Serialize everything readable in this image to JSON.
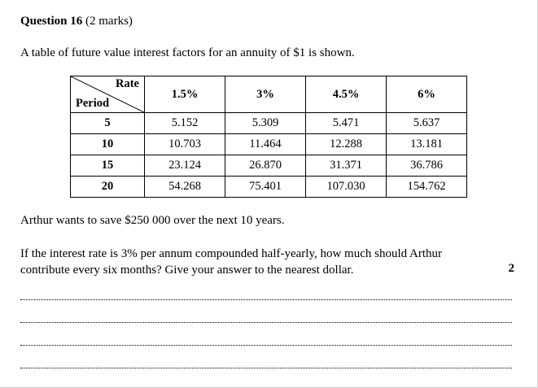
{
  "question": {
    "number_label": "Question 16",
    "marks_label": "(2 marks)",
    "intro": "A table of future value interest factors for an annuity of $1 is shown."
  },
  "table": {
    "corner_top": "Rate",
    "corner_bottom": "Period",
    "rates": [
      "1.5%",
      "3%",
      "4.5%",
      "6%"
    ],
    "rows": [
      {
        "period": "5",
        "values": [
          "5.152",
          "5.309",
          "5.471",
          "5.637"
        ]
      },
      {
        "period": "10",
        "values": [
          "10.703",
          "11.464",
          "12.288",
          "13.181"
        ]
      },
      {
        "period": "15",
        "values": [
          "23.124",
          "26.870",
          "31.371",
          "36.786"
        ]
      },
      {
        "period": "20",
        "values": [
          "54.268",
          "75.401",
          "107.030",
          "154.762"
        ]
      }
    ]
  },
  "text": {
    "paragraph1": "Arthur wants to save $250 000 over the next 10 years.",
    "paragraph2": "If the interest rate is 3% per annum compounded half-yearly, how much should Arthur contribute every six months? Give your answer to the nearest dollar.",
    "marks": "2"
  }
}
